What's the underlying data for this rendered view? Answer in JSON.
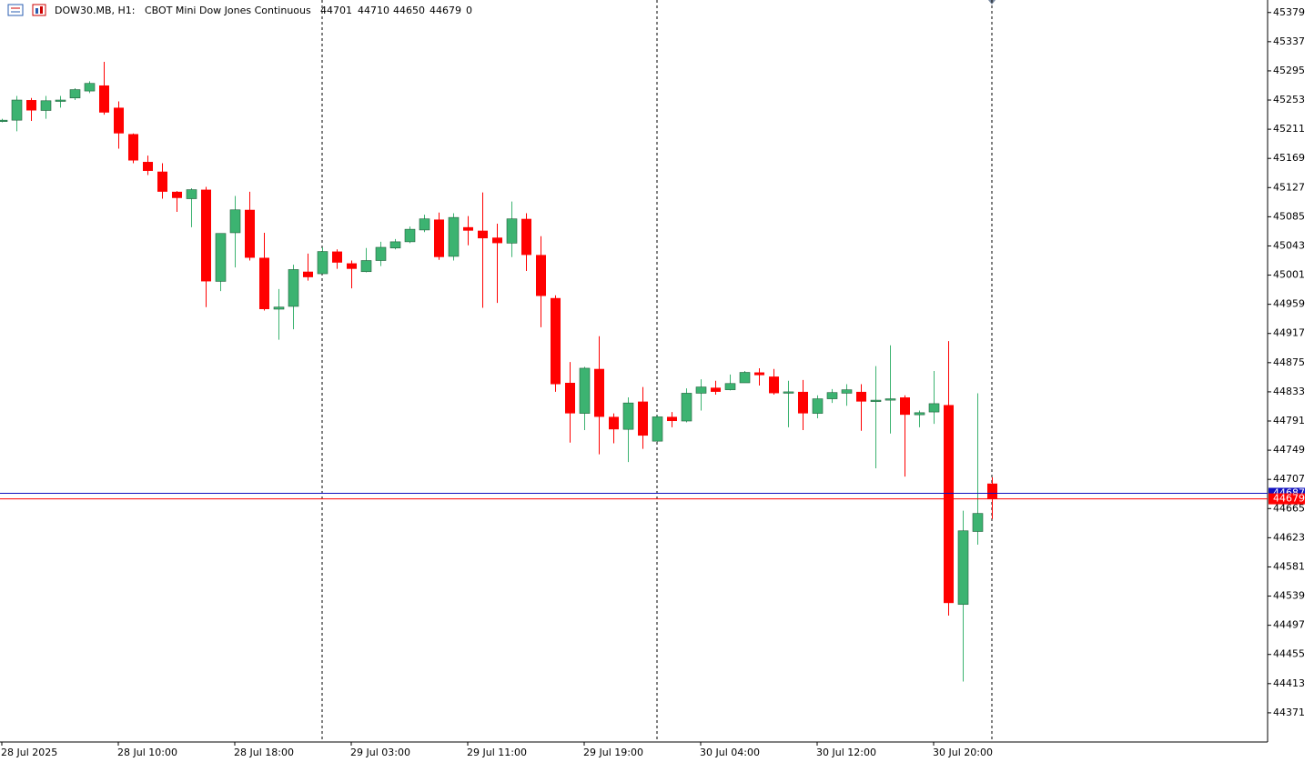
{
  "chart_data": {
    "type": "candlestick",
    "title": "DOW30.MB, H1:",
    "subtitle": "CBOT Mini Dow Jones Continuous",
    "volume": 0,
    "categories": [
      "28 Jul 2025",
      null,
      null,
      null,
      null,
      null,
      null,
      null,
      "28 Jul 10:00",
      null,
      null,
      null,
      null,
      null,
      null,
      null,
      "28 Jul 18:00",
      null,
      null,
      null,
      null,
      null,
      null,
      null,
      "29 Jul 03:00",
      null,
      null,
      null,
      null,
      null,
      null,
      null,
      "29 Jul 11:00",
      null,
      null,
      null,
      null,
      null,
      null,
      null,
      "29 Jul 19:00",
      null,
      null,
      null,
      null,
      null,
      null,
      null,
      "30 Jul 04:00",
      null,
      null,
      null,
      null,
      null,
      null,
      null,
      "30 Jul 12:00",
      null,
      null,
      null,
      null,
      null,
      null,
      null,
      "30 Jul 20:00",
      null,
      null,
      null,
      null
    ],
    "open": [
      45223,
      45224,
      45253,
      45238,
      45252,
      45256,
      45266,
      45274,
      45242,
      45204,
      45164,
      45150,
      45121,
      45111,
      45124,
      44992,
      45062,
      45095,
      45026,
      44952,
      44956,
      45006,
      45003,
      45035,
      45018,
      45006,
      45022,
      45040,
      45049,
      45066,
      45081,
      45028,
      45070,
      45065,
      45055,
      45047,
      45082,
      45030,
      44968,
      44846,
      44802,
      44866,
      44797,
      44779,
      44819,
      44762,
      44797,
      44791,
      44831,
      44839,
      44836,
      44846,
      44861,
      44855,
      44831,
      44833,
      44802,
      44823,
      44831,
      44833,
      44819,
      44821,
      44825,
      44800,
      44804,
      44814,
      44527,
      44632,
      44701
    ],
    "high": [
      45226,
      45259,
      45256,
      45259,
      45259,
      45270,
      45280,
      45308,
      45251,
      45205,
      45173,
      45162,
      45122,
      45126,
      45128,
      45061,
      45115,
      45121,
      45062,
      44981,
      45016,
      45032,
      45041,
      45038,
      45022,
      45040,
      45049,
      45053,
      45071,
      45088,
      45091,
      45090,
      45086,
      45120,
      45075,
      45107,
      45090,
      45057,
      44972,
      44876,
      44869,
      44913,
      44802,
      44825,
      44840,
      44799,
      44804,
      44838,
      44851,
      44849,
      44858,
      44863,
      44867,
      44866,
      44849,
      44850,
      44828,
      44837,
      44844,
      44844,
      44870,
      44900,
      44828,
      44806,
      44863,
      44906,
      44662,
      44831,
      44710
    ],
    "low": [
      45221,
      45208,
      45223,
      45226,
      45242,
      45253,
      45263,
      45232,
      45183,
      45162,
      45145,
      45111,
      45092,
      45070,
      44955,
      44978,
      45012,
      45022,
      44950,
      44908,
      44923,
      44993,
      45003,
      45010,
      44982,
      45005,
      45014,
      45038,
      45047,
      45063,
      45023,
      45022,
      45044,
      44954,
      44961,
      45027,
      45007,
      44926,
      44833,
      44760,
      44778,
      44743,
      44759,
      44732,
      44751,
      44761,
      44782,
      44789,
      44806,
      44829,
      44835,
      44846,
      44842,
      44829,
      44782,
      44778,
      44795,
      44817,
      44813,
      44777,
      44723,
      44773,
      44711,
      44782,
      44787,
      44511,
      44416,
      44613,
      44650
    ],
    "close": [
      45224,
      45253,
      45238,
      45252,
      45253,
      45268,
      45277,
      45235,
      45205,
      45166,
      45151,
      45121,
      45112,
      45124,
      44992,
      45061,
      45095,
      45026,
      44952,
      44955,
      45009,
      44998,
      45035,
      45019,
      45010,
      45022,
      45041,
      45049,
      45067,
      45082,
      45027,
      45084,
      45065,
      45054,
      45047,
      45082,
      45030,
      44971,
      44844,
      44802,
      44867,
      44797,
      44779,
      44817,
      44770,
      44797,
      44791,
      44831,
      44840,
      44833,
      44845,
      44861,
      44857,
      44831,
      44833,
      44802,
      44823,
      44832,
      44836,
      44819,
      44821,
      44823,
      44800,
      44803,
      44816,
      44529,
      44633,
      44658,
      44679
    ],
    "up_color": "#3cb371",
    "down_color": "#ff0000",
    "bid": 44679,
    "ask": 44687,
    "bid_color": "#ff0000",
    "ask_color": "#1010c0",
    "ylim": [
      44329,
      45397
    ],
    "yticks": [
      45379,
      45337,
      45295,
      45253,
      45211,
      45169,
      45127,
      45085,
      45043,
      45001,
      44959,
      44917,
      44875,
      44833,
      44791,
      44749,
      44707,
      44665,
      44623,
      44581,
      44539,
      44497,
      44455,
      44413,
      44371
    ]
  }
}
